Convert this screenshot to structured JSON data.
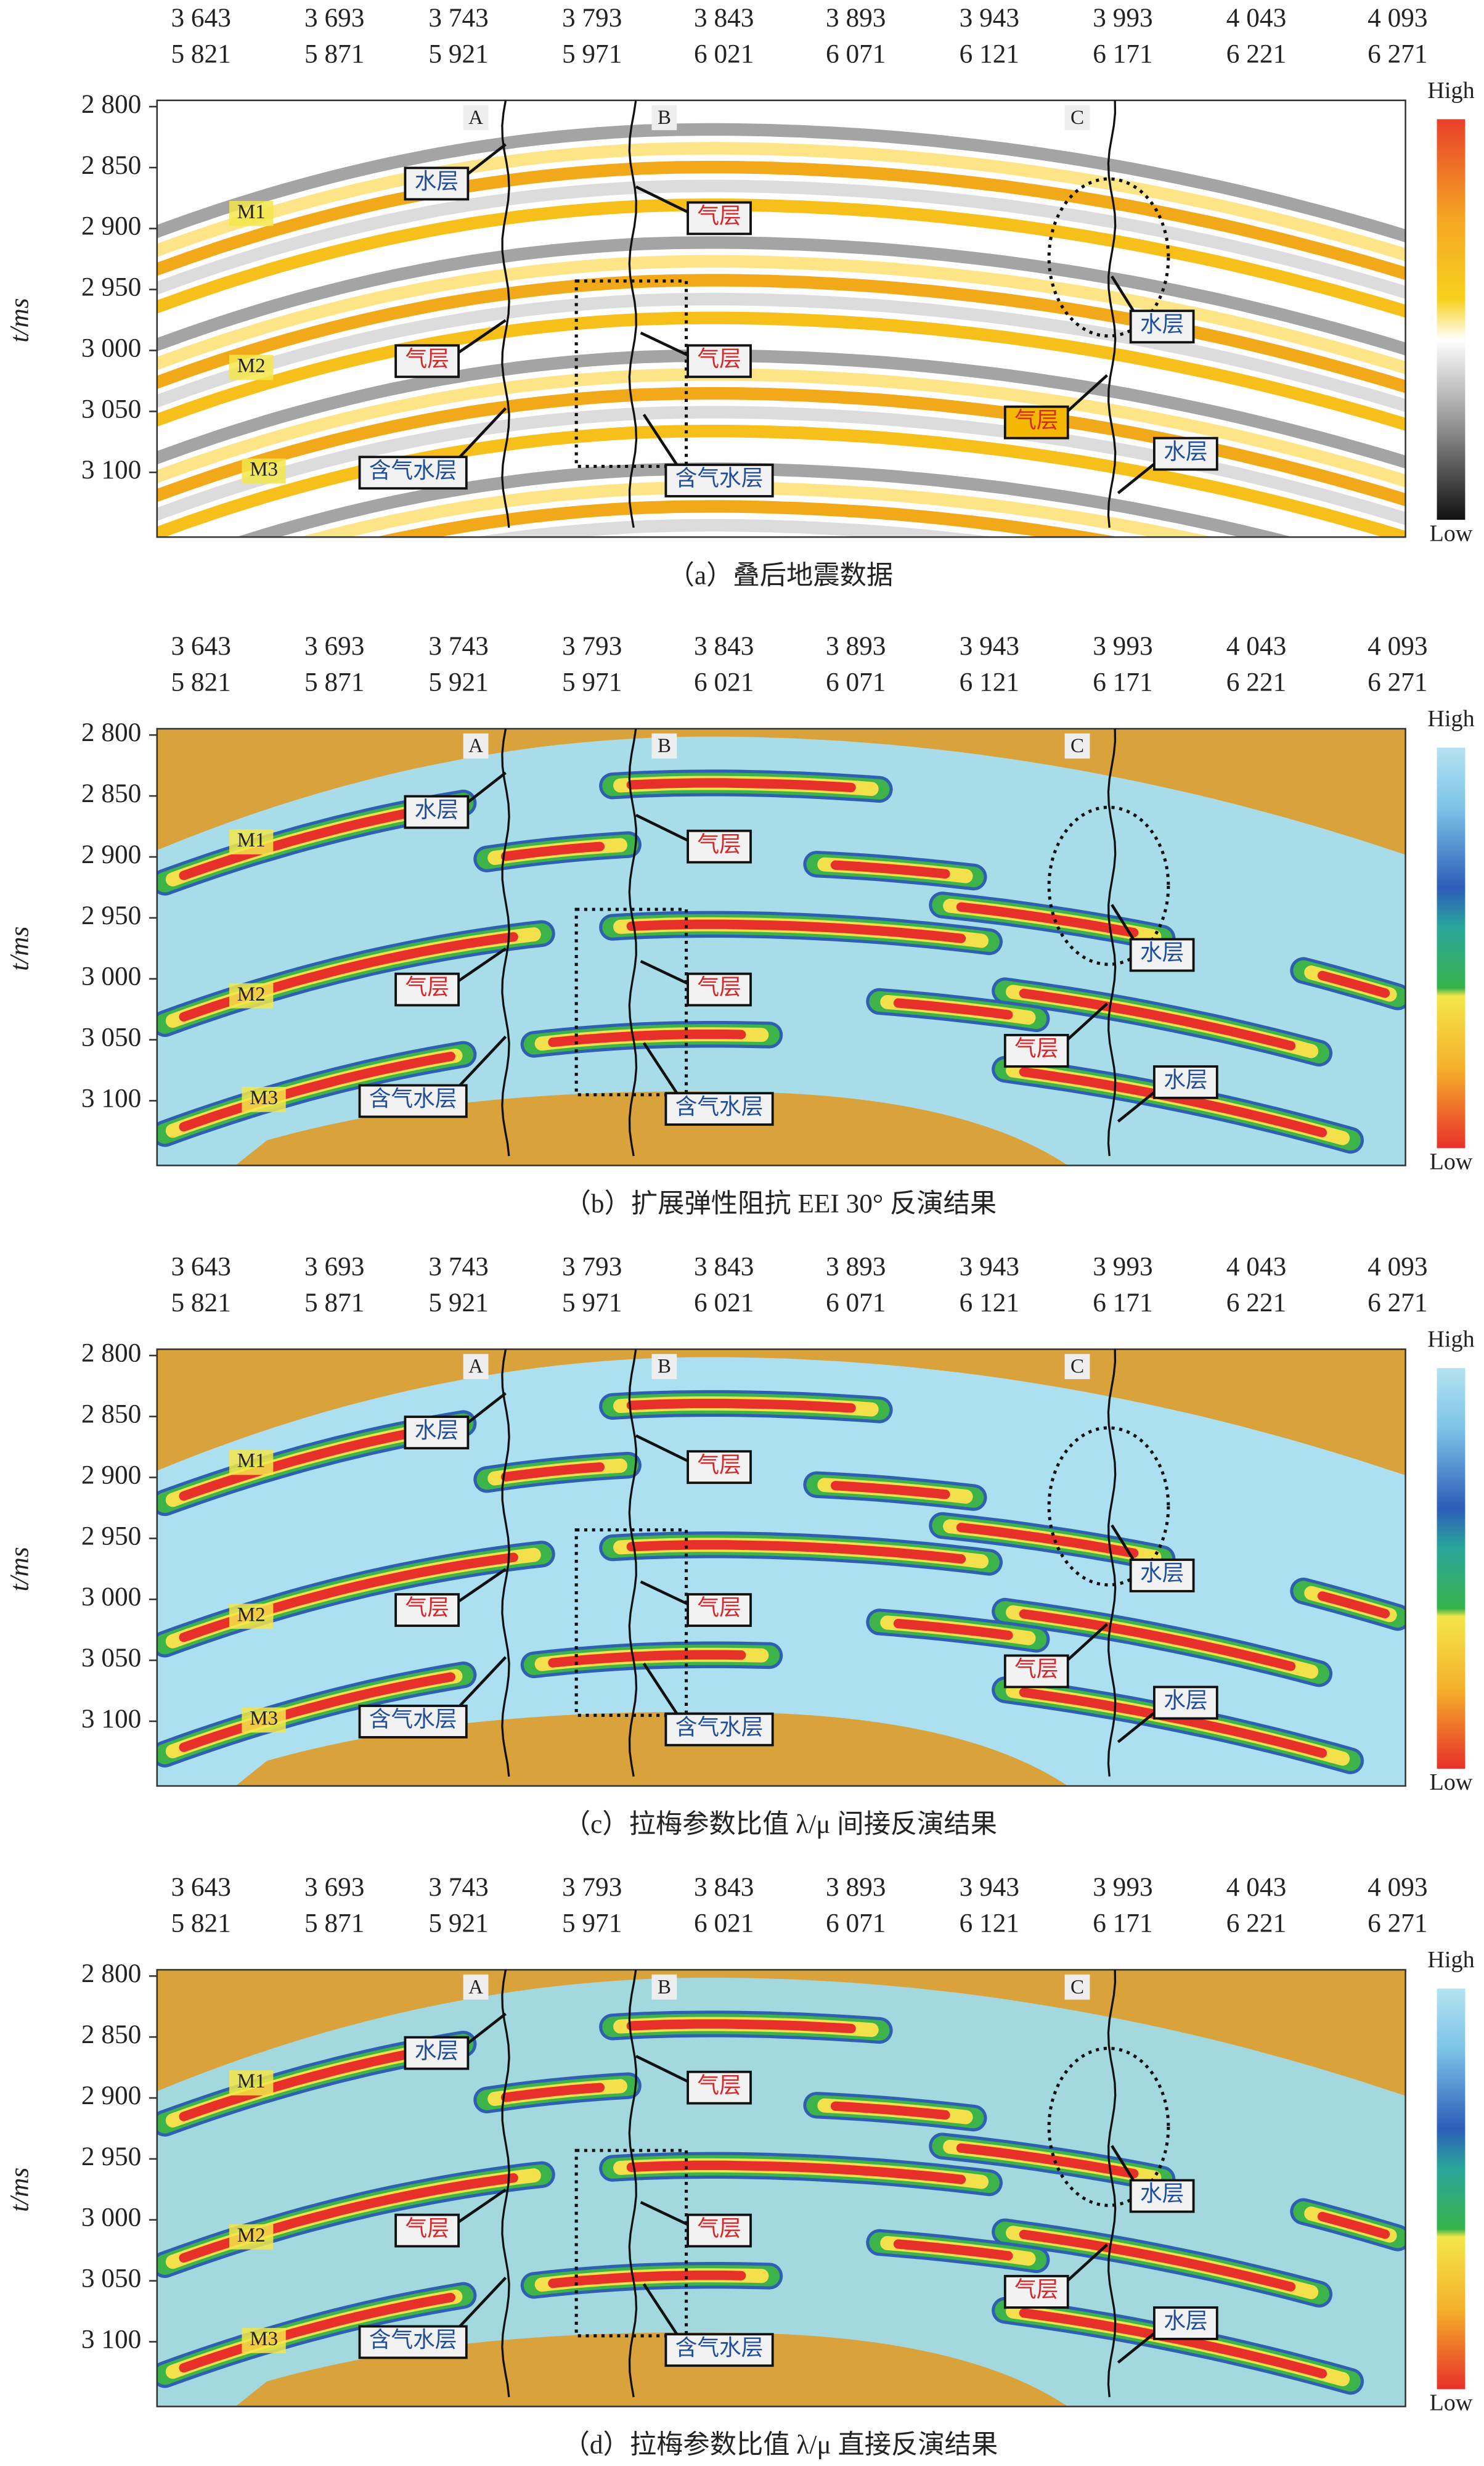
{
  "panels": [
    {
      "caption": "（a）叠后地震数据",
      "cdp": [
        "3 643",
        "3 693",
        "3 743",
        "3 793",
        "3 843",
        "3 893",
        "3 943",
        "3 993",
        "4 043",
        "4 093"
      ],
      "trace": [
        "5 821",
        "5 871",
        "5 921",
        "5 971",
        "6 021",
        "6 071",
        "6 121",
        "6 171",
        "6 221",
        "6 271"
      ],
      "yticks": [
        "2 800",
        "2 850",
        "2 900",
        "2 950",
        "3 000",
        "3 050",
        "3 100"
      ],
      "y_label": "t/ms",
      "wells": [
        "A",
        "B",
        "C"
      ],
      "horizons": [
        "M1",
        "M2",
        "M3"
      ],
      "annotations": [
        "水层",
        "气层",
        "水层",
        "气层",
        "气层",
        "气层",
        "水层",
        "含气水层",
        "含气水层"
      ],
      "colorbar": {
        "high": "High",
        "low": "Low"
      }
    },
    {
      "caption": "（b）扩展弹性阻抗 EEI 30° 反演结果",
      "cdp": [
        "3 643",
        "3 693",
        "3 743",
        "3 793",
        "3 843",
        "3 893",
        "3 943",
        "3 993",
        "4 043",
        "4 093"
      ],
      "trace": [
        "5 821",
        "5 871",
        "5 921",
        "5 971",
        "6 021",
        "6 071",
        "6 121",
        "6 171",
        "6 221",
        "6 271"
      ],
      "yticks": [
        "2 800",
        "2 850",
        "2 900",
        "2 950",
        "3 000",
        "3 050",
        "3 100"
      ],
      "y_label": "t/ms",
      "wells": [
        "A",
        "B",
        "C"
      ],
      "horizons": [
        "M1",
        "M2",
        "M3"
      ],
      "annotations": [
        "水层",
        "气层",
        "水层",
        "气层",
        "气层",
        "气层",
        "水层",
        "含气水层",
        "含气水层"
      ],
      "colorbar": {
        "high": "High",
        "low": "Low"
      }
    },
    {
      "caption": "（c）拉梅参数比值 λ/μ 间接反演结果",
      "cdp": [
        "3 643",
        "3 693",
        "3 743",
        "3 793",
        "3 843",
        "3 893",
        "3 943",
        "3 993",
        "4 043",
        "4 093"
      ],
      "trace": [
        "5 821",
        "5 871",
        "5 921",
        "5 971",
        "6 021",
        "6 071",
        "6 121",
        "6 171",
        "6 221",
        "6 271"
      ],
      "yticks": [
        "2 800",
        "2 850",
        "2 900",
        "2 950",
        "3 000",
        "3 050",
        "3 100"
      ],
      "y_label": "t/ms",
      "wells": [
        "A",
        "B",
        "C"
      ],
      "horizons": [
        "M1",
        "M2",
        "M3"
      ],
      "annotations": [
        "水层",
        "气层",
        "水层",
        "气层",
        "气层",
        "气层",
        "水层",
        "含气水层",
        "含气水层"
      ],
      "colorbar": {
        "high": "High",
        "low": "Low"
      }
    },
    {
      "caption": "（d）拉梅参数比值 λ/μ 直接反演结果",
      "cdp": [
        "3 643",
        "3 693",
        "3 743",
        "3 793",
        "3 843",
        "3 893",
        "3 943",
        "3 993",
        "4 043",
        "4 093"
      ],
      "trace": [
        "5 821",
        "5 871",
        "5 921",
        "5 971",
        "6 021",
        "6 071",
        "6 121",
        "6 171",
        "6 221",
        "6 271"
      ],
      "yticks": [
        "2 800",
        "2 850",
        "2 900",
        "2 950",
        "3 000",
        "3 050",
        "3 100"
      ],
      "y_label": "t/ms",
      "wells": [
        "A",
        "B",
        "C"
      ],
      "horizons": [
        "M1",
        "M2",
        "M3"
      ],
      "annotations": [
        "水层",
        "气层",
        "水层",
        "气层",
        "气层",
        "气层",
        "水层",
        "含气水层",
        "含气水层"
      ],
      "colorbar": {
        "high": "High",
        "low": "Low"
      }
    }
  ]
}
